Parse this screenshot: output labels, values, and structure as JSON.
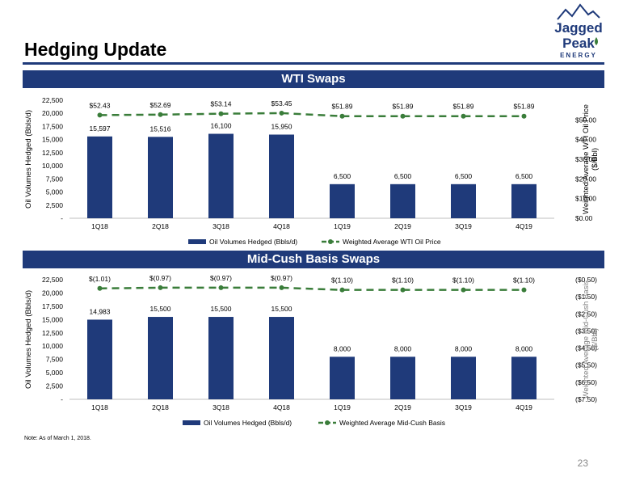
{
  "page": {
    "title": "Hedging Update",
    "note": "Note: As of March 1, 2018.",
    "page_number": "23"
  },
  "logo": {
    "line1": "Jagged",
    "line2": "Peak",
    "line3": "ENERGY"
  },
  "colors": {
    "navy": "#1f3a7a",
    "green": "#3a7d3a",
    "grid_text": "#000000"
  },
  "chart_data": [
    {
      "type": "bar",
      "title": "WTI Swaps",
      "categories": [
        "1Q18",
        "2Q18",
        "3Q18",
        "4Q18",
        "1Q19",
        "2Q19",
        "3Q19",
        "4Q19"
      ],
      "ylabel": "Oil Volumes Hedged (Bbls/d)",
      "ylim": [
        0,
        22500
      ],
      "yticks": [
        "-",
        "2,500",
        "5,000",
        "7,500",
        "10,000",
        "12,500",
        "15,000",
        "17,500",
        "20,000",
        "22,500"
      ],
      "y2label": "Weighted Average WTI Oil Price ($/Bbl)",
      "y2lim": [
        0,
        60
      ],
      "y2ticks": [
        "$0.00",
        "$10.00",
        "$20.00",
        "$30.00",
        "$40.00",
        "$50.00"
      ],
      "series": [
        {
          "name": "Oil Volumes Hedged (Bbls/d)",
          "kind": "bar",
          "values": [
            15597,
            15516,
            16100,
            15950,
            6500,
            6500,
            6500,
            6500
          ],
          "labels": [
            "15,597",
            "15,516",
            "16,100",
            "15,950",
            "6,500",
            "6,500",
            "6,500",
            "6,500"
          ]
        },
        {
          "name": "Weighted Average WTI Oil Price",
          "kind": "line",
          "axis": "right",
          "values": [
            52.43,
            52.69,
            53.14,
            53.45,
            51.89,
            51.89,
            51.89,
            51.89
          ],
          "labels": [
            "$52.43",
            "$52.69",
            "$53.14",
            "$53.45",
            "$51.89",
            "$51.89",
            "$51.89",
            "$51.89"
          ]
        }
      ],
      "legend": "bottom"
    },
    {
      "type": "bar",
      "title": "Mid-Cush Basis Swaps",
      "categories": [
        "1Q18",
        "2Q18",
        "3Q18",
        "4Q18",
        "1Q19",
        "2Q19",
        "3Q19",
        "4Q19"
      ],
      "ylabel": "Oil Volumes Hedged (Bbls/d)",
      "ylim": [
        0,
        22500
      ],
      "yticks": [
        "-",
        "2,500",
        "5,000",
        "7,500",
        "10,000",
        "12,500",
        "15,000",
        "17,500",
        "20,000",
        "22,500"
      ],
      "y2label": "Weighted Average Mid-Cush Basis ($/Bbl)",
      "y2lim": [
        -7.5,
        -0.5
      ],
      "y2ticks": [
        "($7.50)",
        "($6.50)",
        "($5.50)",
        "($4.50)",
        "($3.50)",
        "($2.50)",
        "($1.50)",
        "($0.50)"
      ],
      "series": [
        {
          "name": "Oil Volumes Hedged (Bbls/d)",
          "kind": "bar",
          "values": [
            14983,
            15500,
            15500,
            15500,
            8000,
            8000,
            8000,
            8000
          ],
          "labels": [
            "14,983",
            "15,500",
            "15,500",
            "15,500",
            "8,000",
            "8,000",
            "8,000",
            "8,000"
          ]
        },
        {
          "name": "Weighted Average Mid-Cush Basis",
          "kind": "line",
          "axis": "right",
          "values": [
            -1.01,
            -0.97,
            -0.97,
            -0.97,
            -1.1,
            -1.1,
            -1.1,
            -1.1
          ],
          "labels": [
            "$(1.01)",
            "$(0.97)",
            "$(0.97)",
            "$(0.97)",
            "$(1.10)",
            "$(1.10)",
            "$(1.10)",
            "$(1.10)"
          ]
        }
      ],
      "legend": "bottom"
    }
  ]
}
